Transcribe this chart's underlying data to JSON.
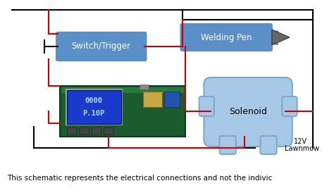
{
  "background_color": "#ffffff",
  "caption": "This schematic represents the electrical connections and not the indivic",
  "switch_trigger_label": "Switch/Trigger",
  "welding_pen_label": "Welding Pen",
  "solenoid_label": "Solenoid",
  "label_12v": "12V",
  "label_lawnmow": "Lawnmow",
  "box_color": "#5b8fc8",
  "box_color_light": "#a8c8e8",
  "wire_color": "#cc0000",
  "line_color": "#000000",
  "text_color": "#000000",
  "white_text": "#ffffff",
  "pcb_color": "#1a5c2e",
  "lcd_color": "#1a3acc",
  "lcd_text_color": "#aaddff"
}
